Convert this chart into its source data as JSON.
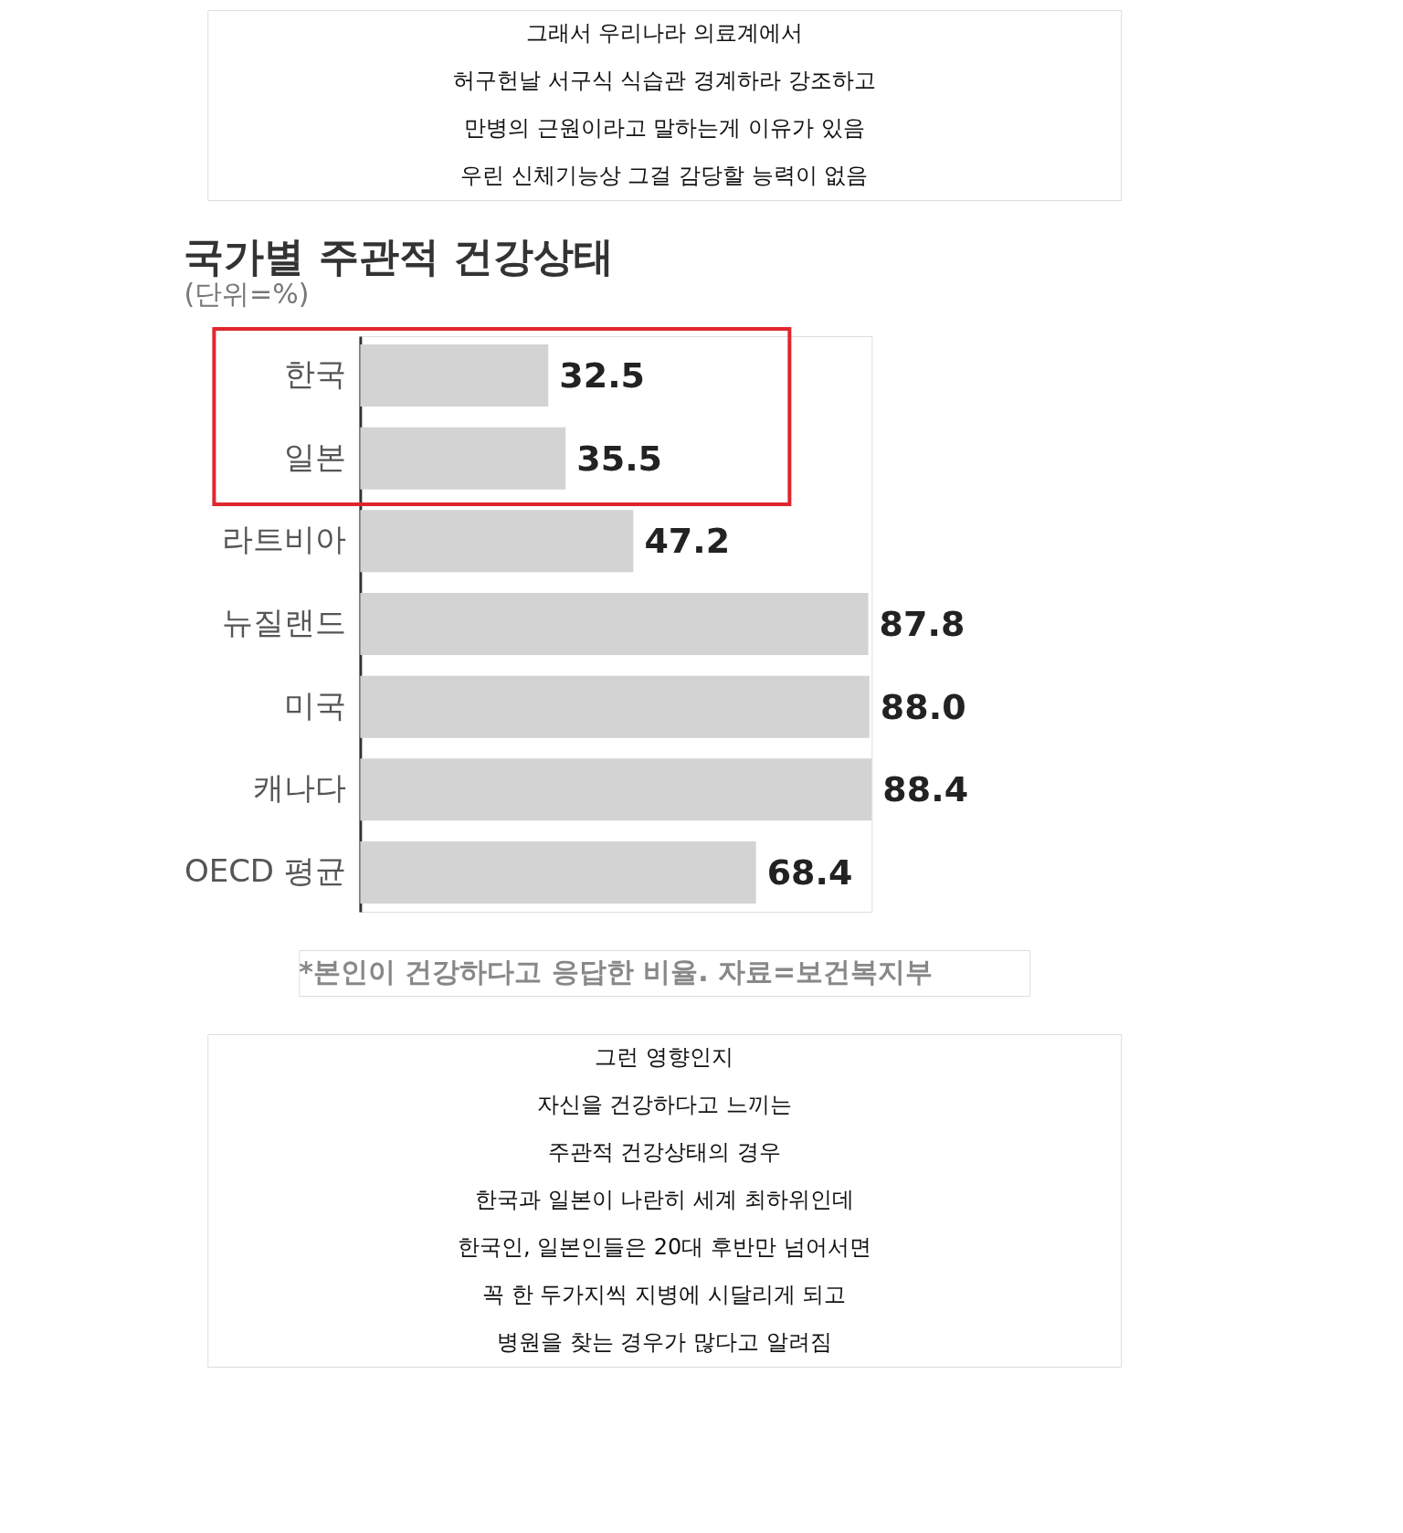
{
  "chart_data": {
    "type": "bar",
    "orientation": "horizontal",
    "title": "국가별 주관적 건강상태",
    "subtitle": "(단위=%)",
    "categories": [
      "한국",
      "일본",
      "라트비아",
      "뉴질랜드",
      "미국",
      "캐나다",
      "OECD 평균"
    ],
    "values": [
      32.5,
      35.5,
      47.2,
      87.8,
      88.0,
      88.4,
      68.4
    ],
    "value_labels": [
      "32.5",
      "35.5",
      "47.2",
      "87.8",
      "88.0",
      "88.4",
      "68.4"
    ],
    "color": "#d3d3d3",
    "grid": false,
    "tick_labels": "y",
    "annotations": [
      "그래서 우리나라 의료계에서",
      "허구헌날 서구식 식습관 경계하라 강조하고",
      "만병의 근원이라고 말하는게 이유가 있음",
      "우린 신체기능상 그걸 감당할 능력이 없음",
      "*본인이 건강하다고 응답한 비율. 자료=보건복지부",
      "그런 영향인지",
      "자신을 건강하다고 느끼는",
      "주관적 건강상태의 경우",
      "한국과 일본이 나란히 세계 최하위인데",
      "한국인, 일본인들은 20대 후반만 넘어서면",
      "꼭 한 두가지씩 지병에 시달리게 되고",
      "병원을 찾는 경우가 많다고 알려짐"
    ]
  }
}
